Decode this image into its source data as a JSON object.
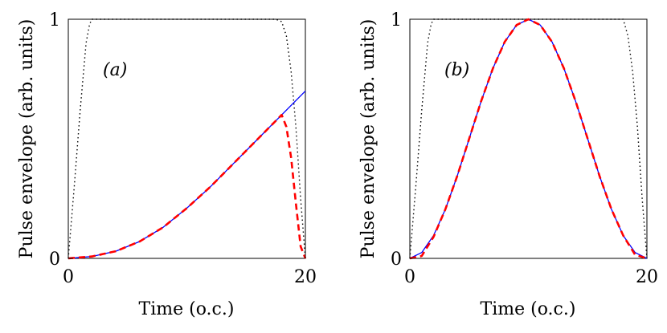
{
  "chart_data": [
    {
      "type": "line",
      "panel_label": "(a)",
      "xlabel": "Time (o.c.)",
      "ylabel": "Pulse envelope (arb. units)",
      "xlim": [
        0,
        20
      ],
      "ylim": [
        0,
        1
      ],
      "xticks": [
        {
          "value": 0,
          "label": "0"
        },
        {
          "value": 20,
          "label": "20"
        }
      ],
      "yticks": [
        {
          "value": 0,
          "label": "0"
        },
        {
          "value": 1,
          "label": "1"
        }
      ],
      "grid": false,
      "series": [
        {
          "style": "dotted",
          "color": "#000000",
          "x": [
            0,
            0.5,
            1,
            1.5,
            1.8,
            2,
            17.5,
            18,
            18.4,
            18.8,
            19.2,
            19.6,
            20
          ],
          "y": [
            0,
            0.3,
            0.62,
            0.9,
            0.98,
            1,
            1,
            0.99,
            0.93,
            0.78,
            0.55,
            0.25,
            0
          ]
        },
        {
          "style": "solid",
          "color": "#0000ff",
          "x": [
            0,
            2,
            4,
            6,
            8,
            10,
            12,
            14,
            16,
            18,
            20
          ],
          "y": [
            0,
            0.008,
            0.03,
            0.07,
            0.13,
            0.21,
            0.3,
            0.4,
            0.5,
            0.6,
            0.7
          ]
        },
        {
          "style": "dashed",
          "color": "#ff0000",
          "x": [
            0,
            2,
            4,
            6,
            8,
            10,
            12,
            14,
            16,
            18,
            18.4,
            18.8,
            19.2,
            19.6,
            20
          ],
          "y": [
            0,
            0.008,
            0.03,
            0.07,
            0.13,
            0.21,
            0.3,
            0.4,
            0.5,
            0.6,
            0.55,
            0.42,
            0.23,
            0.05,
            0
          ]
        }
      ]
    },
    {
      "type": "line",
      "panel_label": "(b)",
      "xlabel": "Time (o.c.)",
      "ylabel": "Pulse envelope (arb. units)",
      "xlim": [
        0,
        20
      ],
      "ylim": [
        0,
        1
      ],
      "xticks": [
        {
          "value": 0,
          "label": "0"
        },
        {
          "value": 20,
          "label": "20"
        }
      ],
      "yticks": [
        {
          "value": 0,
          "label": "0"
        },
        {
          "value": 1,
          "label": "1"
        }
      ],
      "grid": false,
      "series": [
        {
          "style": "dotted",
          "color": "#000000",
          "x": [
            0,
            0.5,
            1,
            1.5,
            1.8,
            2,
            18,
            18.4,
            18.8,
            19.2,
            19.6,
            20
          ],
          "y": [
            0,
            0.3,
            0.62,
            0.9,
            0.98,
            1,
            1,
            0.93,
            0.78,
            0.55,
            0.25,
            0
          ]
        },
        {
          "style": "solid",
          "color": "#0000ff",
          "x": [
            0,
            1,
            2,
            3,
            4,
            5,
            6,
            7,
            8,
            9,
            10,
            11,
            12,
            13,
            14,
            15,
            16,
            17,
            18,
            19,
            20
          ],
          "y": [
            0,
            0.0245,
            0.0955,
            0.206,
            0.345,
            0.5,
            0.655,
            0.794,
            0.905,
            0.976,
            1,
            0.976,
            0.905,
            0.794,
            0.655,
            0.5,
            0.345,
            0.206,
            0.0955,
            0.0245,
            0
          ]
        },
        {
          "style": "dashed",
          "color": "#ff0000",
          "x": [
            0,
            1,
            2,
            3,
            4,
            5,
            6,
            7,
            8,
            9,
            10,
            11,
            12,
            13,
            14,
            15,
            16,
            17,
            18,
            19,
            20
          ],
          "y": [
            0,
            0.01,
            0.09,
            0.206,
            0.345,
            0.5,
            0.655,
            0.794,
            0.905,
            0.976,
            1,
            0.976,
            0.905,
            0.794,
            0.655,
            0.5,
            0.345,
            0.206,
            0.0955,
            0.015,
            0
          ]
        }
      ]
    }
  ]
}
